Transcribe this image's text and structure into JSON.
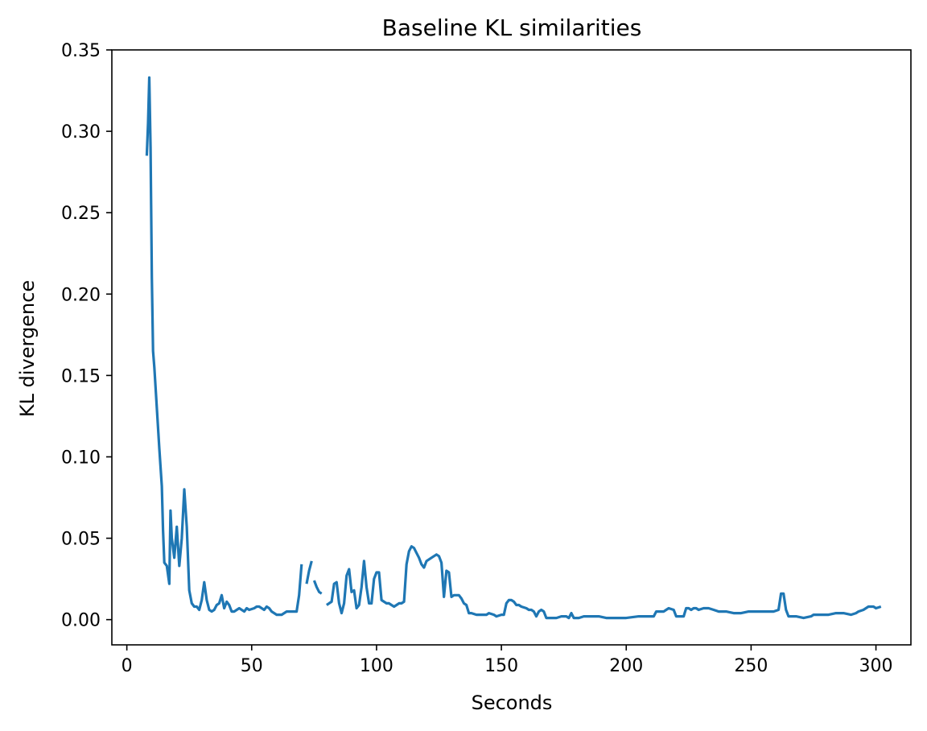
{
  "chart_data": {
    "type": "line",
    "title": "Baseline KL similarities",
    "xlabel": "Seconds",
    "ylabel": "KL divergence",
    "xlim": [
      -6,
      314
    ],
    "ylim": [
      -0.0155,
      0.35
    ],
    "xticks": [
      0,
      50,
      100,
      150,
      200,
      250,
      300
    ],
    "xtick_labels": [
      "0",
      "50",
      "100",
      "150",
      "200",
      "250",
      "300"
    ],
    "yticks": [
      0.0,
      0.05,
      0.1,
      0.15,
      0.2,
      0.25,
      0.3,
      0.35
    ],
    "ytick_labels": [
      "0.00",
      "0.05",
      "0.10",
      "0.15",
      "0.20",
      "0.25",
      "0.30",
      "0.35"
    ],
    "grid": false,
    "series": [
      {
        "color": "#1f77b4",
        "segments": [
          [
            [
              8,
              0.285
            ],
            [
              8.5,
              0.305
            ],
            [
              9,
              0.333
            ],
            [
              9.5,
              0.29
            ],
            [
              10,
              0.21
            ],
            [
              10.5,
              0.165
            ],
            [
              11,
              0.155
            ],
            [
              12,
              0.13
            ],
            [
              13,
              0.105
            ],
            [
              14,
              0.082
            ],
            [
              14.5,
              0.055
            ],
            [
              15,
              0.035
            ],
            [
              16,
              0.033
            ],
            [
              17,
              0.022
            ],
            [
              17.5,
              0.067
            ],
            [
              18,
              0.05
            ],
            [
              19,
              0.038
            ],
            [
              20,
              0.057
            ],
            [
              21,
              0.033
            ],
            [
              22,
              0.05
            ],
            [
              23,
              0.08
            ],
            [
              24,
              0.057
            ],
            [
              25,
              0.018
            ],
            [
              26,
              0.01
            ],
            [
              27,
              0.008
            ],
            [
              28,
              0.008
            ],
            [
              29,
              0.006
            ],
            [
              30,
              0.012
            ],
            [
              31,
              0.023
            ],
            [
              32,
              0.012
            ],
            [
              33,
              0.006
            ],
            [
              34,
              0.005
            ],
            [
              35,
              0.006
            ],
            [
              36,
              0.009
            ],
            [
              37,
              0.01
            ],
            [
              38,
              0.015
            ],
            [
              39,
              0.007
            ],
            [
              40,
              0.011
            ],
            [
              41,
              0.009
            ],
            [
              42,
              0.005
            ],
            [
              43,
              0.005
            ],
            [
              44,
              0.006
            ],
            [
              45,
              0.007
            ],
            [
              47,
              0.005
            ],
            [
              48,
              0.007
            ],
            [
              49,
              0.006
            ],
            [
              51,
              0.007
            ],
            [
              52,
              0.008
            ],
            [
              53,
              0.008
            ],
            [
              54,
              0.007
            ],
            [
              55,
              0.006
            ],
            [
              56,
              0.008
            ],
            [
              57,
              0.007
            ],
            [
              58,
              0.005
            ],
            [
              60,
              0.003
            ],
            [
              62,
              0.003
            ],
            [
              63,
              0.004
            ],
            [
              64,
              0.005
            ],
            [
              67,
              0.005
            ],
            [
              68,
              0.005
            ],
            [
              69,
              0.015
            ],
            [
              70,
              0.034
            ]
          ],
          [
            [
              72,
              0.022
            ],
            [
              73,
              0.03
            ],
            [
              74,
              0.036
            ]
          ],
          [
            [
              75,
              0.024
            ],
            [
              76,
              0.02
            ],
            [
              77,
              0.017
            ],
            [
              78,
              0.016
            ]
          ],
          [
            [
              80,
              0.009
            ],
            [
              81,
              0.01
            ],
            [
              82,
              0.011
            ],
            [
              83,
              0.022
            ],
            [
              84,
              0.023
            ],
            [
              85,
              0.01
            ],
            [
              86,
              0.004
            ],
            [
              87,
              0.01
            ],
            [
              88,
              0.027
            ],
            [
              89,
              0.031
            ],
            [
              90,
              0.017
            ],
            [
              91,
              0.018
            ],
            [
              92,
              0.007
            ],
            [
              93,
              0.009
            ],
            [
              94,
              0.02
            ],
            [
              95,
              0.036
            ],
            [
              96,
              0.02
            ],
            [
              97,
              0.01
            ],
            [
              98,
              0.01
            ],
            [
              99,
              0.025
            ],
            [
              100,
              0.029
            ],
            [
              101,
              0.029
            ],
            [
              102,
              0.012
            ],
            [
              104,
              0.01
            ],
            [
              105,
              0.01
            ],
            [
              106,
              0.009
            ],
            [
              107,
              0.008
            ],
            [
              108,
              0.009
            ],
            [
              109,
              0.01
            ],
            [
              110,
              0.01
            ],
            [
              111,
              0.011
            ],
            [
              112,
              0.034
            ],
            [
              113,
              0.042
            ],
            [
              114,
              0.045
            ],
            [
              115,
              0.044
            ],
            [
              116,
              0.041
            ],
            [
              117,
              0.038
            ],
            [
              118,
              0.034
            ],
            [
              119,
              0.032
            ],
            [
              120,
              0.036
            ],
            [
              122,
              0.038
            ],
            [
              123,
              0.039
            ],
            [
              124,
              0.04
            ],
            [
              125,
              0.039
            ],
            [
              126,
              0.035
            ],
            [
              127,
              0.014
            ],
            [
              128,
              0.03
            ],
            [
              129,
              0.029
            ],
            [
              130,
              0.014
            ],
            [
              131,
              0.015
            ],
            [
              133,
              0.015
            ],
            [
              134,
              0.013
            ],
            [
              135,
              0.01
            ],
            [
              136,
              0.009
            ],
            [
              137,
              0.004
            ],
            [
              138,
              0.004
            ],
            [
              140,
              0.003
            ],
            [
              142,
              0.003
            ],
            [
              144,
              0.003
            ],
            [
              145,
              0.004
            ],
            [
              147,
              0.003
            ],
            [
              148,
              0.002
            ],
            [
              150,
              0.003
            ],
            [
              151,
              0.003
            ],
            [
              152,
              0.01
            ],
            [
              153,
              0.012
            ],
            [
              154,
              0.012
            ],
            [
              155,
              0.011
            ],
            [
              156,
              0.009
            ],
            [
              157,
              0.009
            ],
            [
              158,
              0.008
            ],
            [
              160,
              0.007
            ],
            [
              161,
              0.006
            ],
            [
              162,
              0.006
            ],
            [
              163,
              0.005
            ],
            [
              164,
              0.002
            ],
            [
              165,
              0.005
            ],
            [
              166,
              0.006
            ],
            [
              167,
              0.005
            ],
            [
              168,
              0.001
            ],
            [
              170,
              0.001
            ],
            [
              172,
              0.001
            ],
            [
              174,
              0.002
            ],
            [
              176,
              0.002
            ],
            [
              177,
              0.001
            ],
            [
              178,
              0.004
            ],
            [
              179,
              0.001
            ],
            [
              181,
              0.001
            ],
            [
              183,
              0.002
            ],
            [
              186,
              0.002
            ],
            [
              189,
              0.002
            ],
            [
              192,
              0.001
            ],
            [
              195,
              0.001
            ],
            [
              200,
              0.001
            ],
            [
              205,
              0.002
            ],
            [
              211,
              0.002
            ],
            [
              212,
              0.005
            ],
            [
              215,
              0.005
            ],
            [
              216,
              0.006
            ],
            [
              217,
              0.007
            ],
            [
              219,
              0.006
            ],
            [
              220,
              0.002
            ],
            [
              223,
              0.002
            ],
            [
              224,
              0.007
            ],
            [
              225,
              0.007
            ],
            [
              226,
              0.006
            ],
            [
              227,
              0.007
            ],
            [
              228,
              0.007
            ],
            [
              229,
              0.006
            ],
            [
              231,
              0.007
            ],
            [
              233,
              0.007
            ],
            [
              235,
              0.006
            ],
            [
              237,
              0.005
            ],
            [
              240,
              0.005
            ],
            [
              243,
              0.004
            ],
            [
              246,
              0.004
            ],
            [
              249,
              0.005
            ],
            [
              252,
              0.005
            ],
            [
              255,
              0.005
            ],
            [
              257,
              0.005
            ],
            [
              259,
              0.005
            ],
            [
              261,
              0.006
            ],
            [
              262,
              0.016
            ],
            [
              263,
              0.016
            ],
            [
              264,
              0.006
            ],
            [
              265,
              0.002
            ],
            [
              268,
              0.002
            ],
            [
              271,
              0.001
            ],
            [
              274,
              0.002
            ],
            [
              275,
              0.003
            ],
            [
              278,
              0.003
            ],
            [
              281,
              0.003
            ],
            [
              284,
              0.004
            ],
            [
              287,
              0.004
            ],
            [
              290,
              0.003
            ],
            [
              292,
              0.004
            ],
            [
              293,
              0.005
            ],
            [
              295,
              0.006
            ],
            [
              297,
              0.008
            ],
            [
              299,
              0.008
            ],
            [
              300,
              0.007
            ],
            [
              302,
              0.008
            ]
          ]
        ]
      }
    ]
  }
}
